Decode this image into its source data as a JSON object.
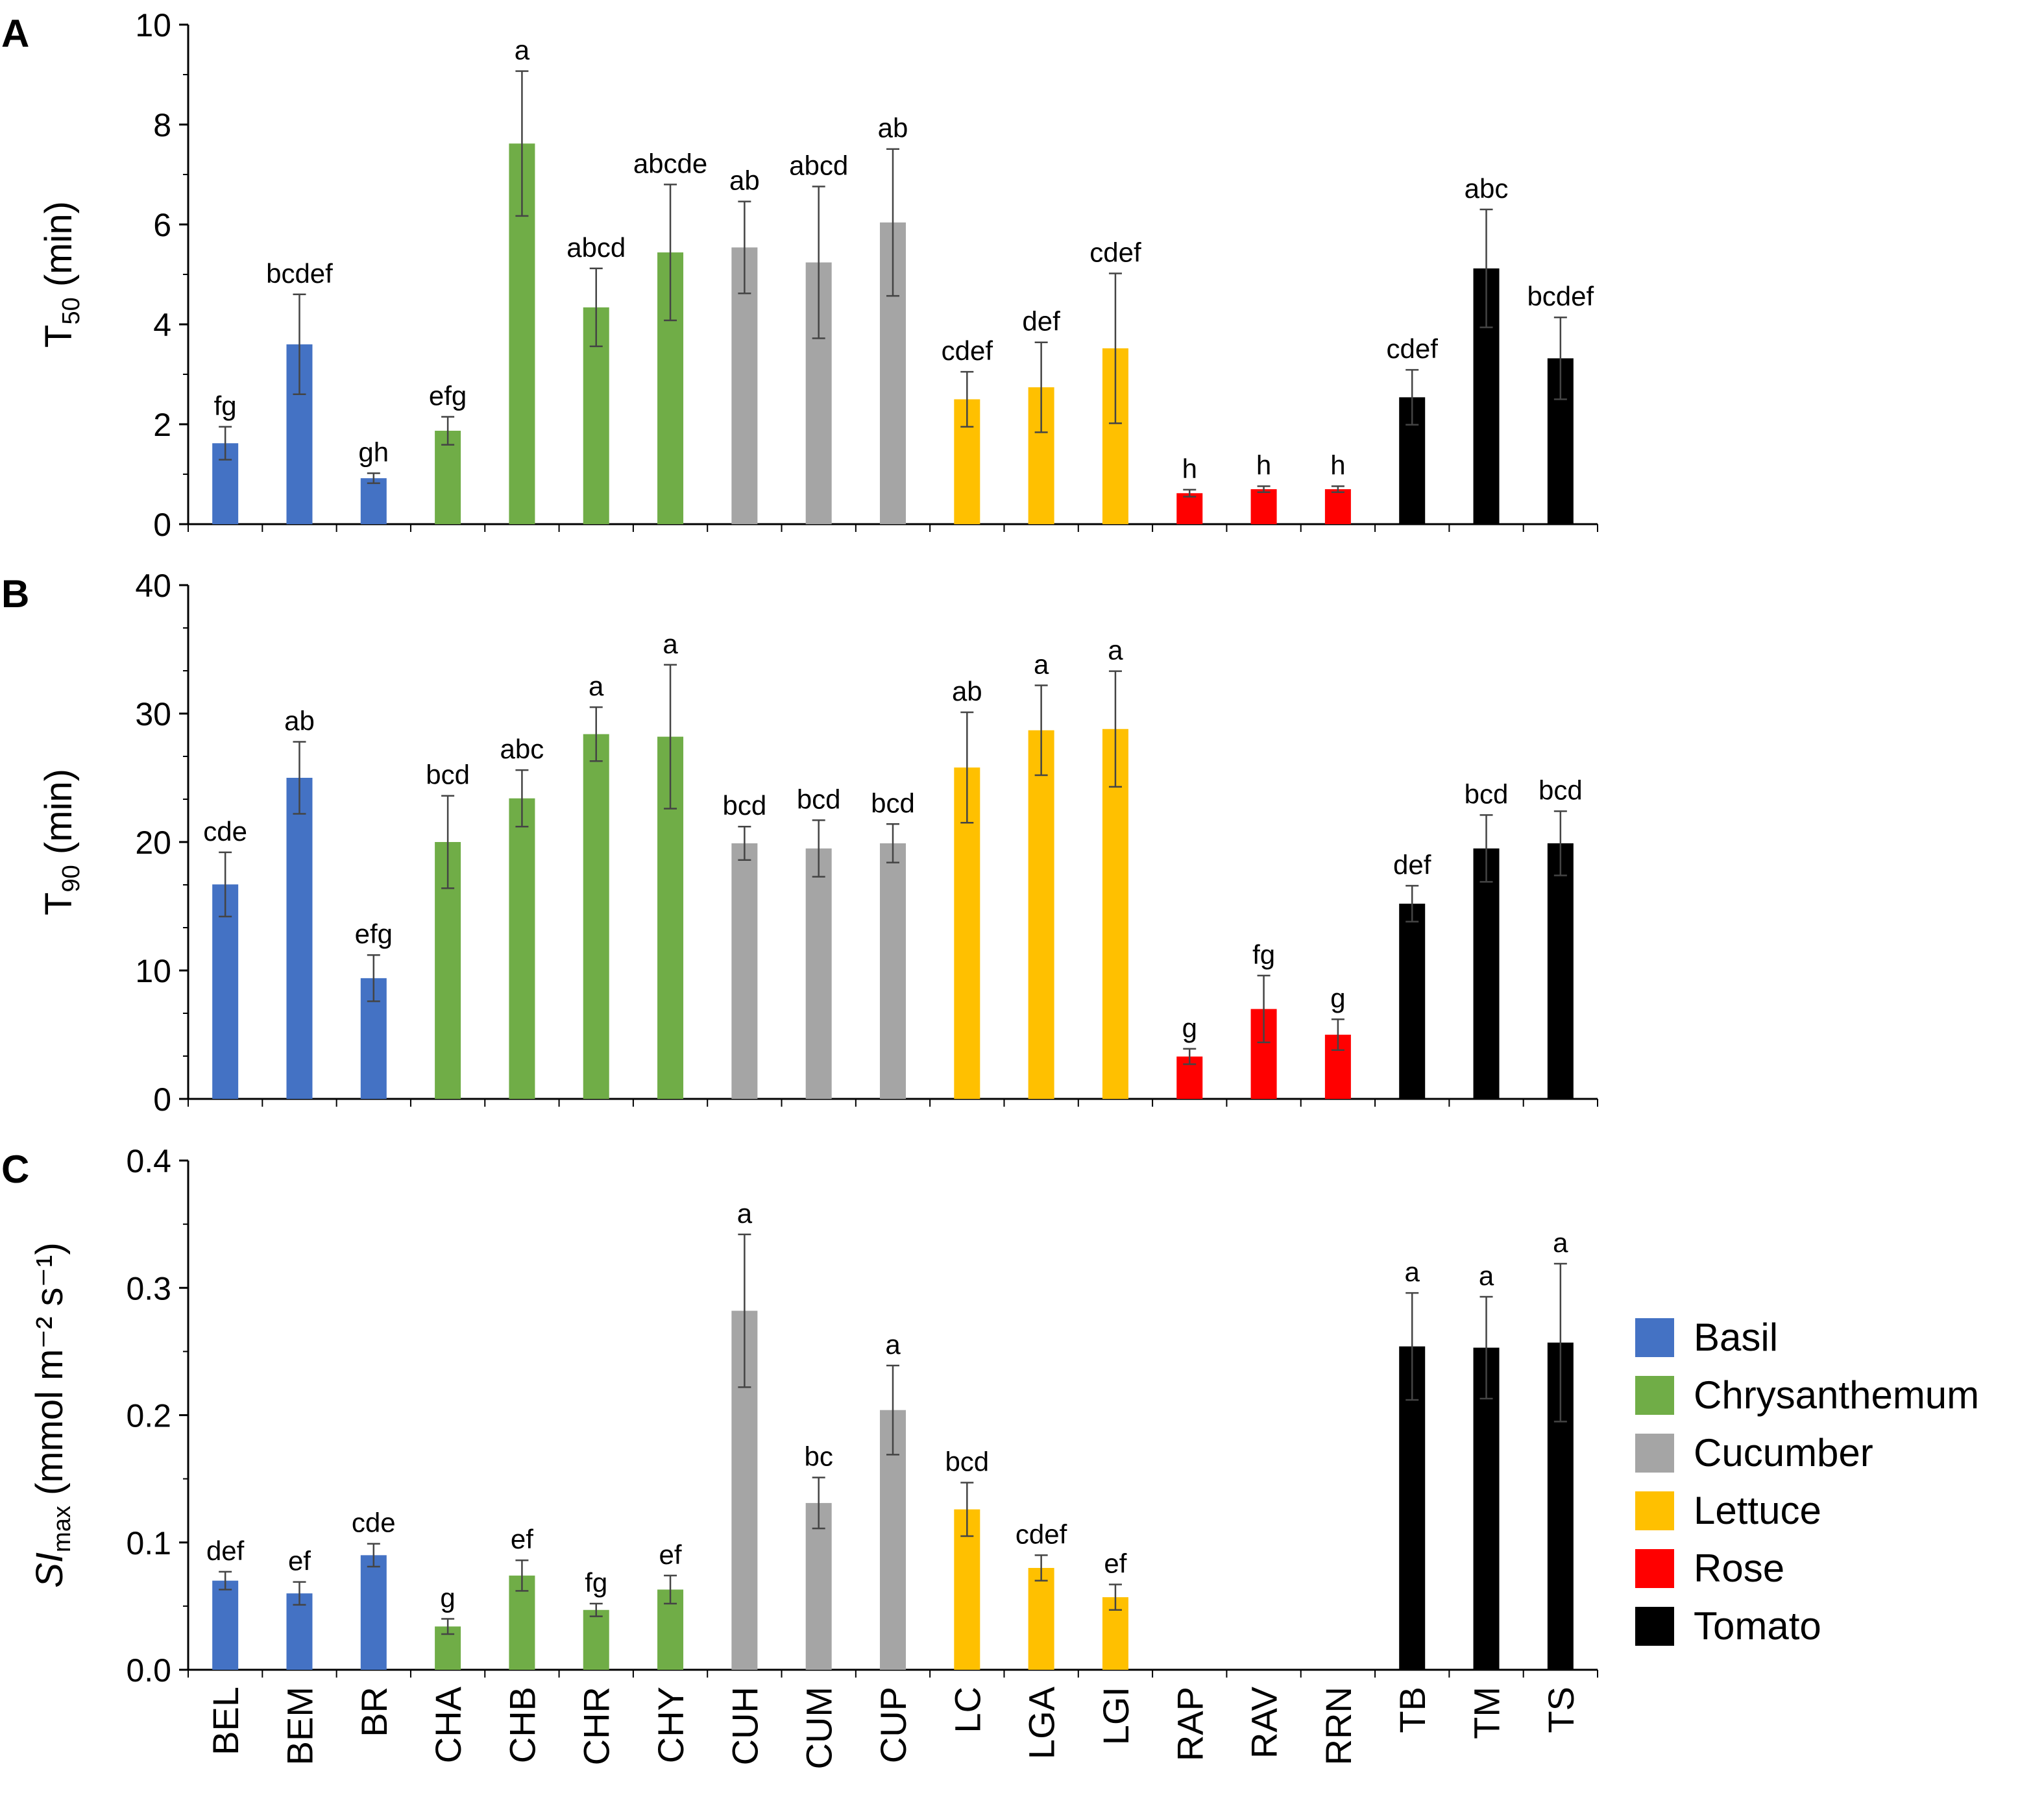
{
  "chart_data": {
    "type": "bar",
    "categories": [
      "BEL",
      "BEM",
      "BR",
      "CHA",
      "CHB",
      "CHR",
      "CHY",
      "CUH",
      "CUM",
      "CUP",
      "LC",
      "LGA",
      "LGI",
      "RAP",
      "RAV",
      "RRN",
      "TB",
      "TM",
      "TS"
    ],
    "groups": [
      {
        "name": "Basil",
        "color": "#4472C4",
        "members": [
          "BEL",
          "BEM",
          "BR"
        ]
      },
      {
        "name": "Chrysanthemum",
        "color": "#70AD47",
        "members": [
          "CHA",
          "CHB",
          "CHR",
          "CHY"
        ]
      },
      {
        "name": "Cucumber",
        "color": "#A5A5A5",
        "members": [
          "CUH",
          "CUM",
          "CUP"
        ]
      },
      {
        "name": "Lettuce",
        "color": "#FFC000",
        "members": [
          "LC",
          "LGA",
          "LGI"
        ]
      },
      {
        "name": "Rose",
        "color": "#FF0000",
        "members": [
          "RAP",
          "RAV",
          "RRN"
        ]
      },
      {
        "name": "Tomato",
        "color": "#000000",
        "members": [
          "TB",
          "TM",
          "TS"
        ]
      }
    ],
    "panels": [
      {
        "letter": "A",
        "ylabel_main": "T",
        "ylabel_sub": "50",
        "ylabel_unit": " (min)",
        "ylim": [
          0,
          10
        ],
        "ticks": [
          "0",
          "2",
          "4",
          "6",
          "8",
          "10"
        ],
        "values": [
          1.62,
          3.6,
          0.92,
          1.87,
          7.62,
          4.34,
          5.44,
          5.54,
          5.24,
          6.04,
          2.5,
          2.74,
          3.52,
          0.62,
          0.7,
          0.7,
          2.54,
          5.12,
          3.32
        ],
        "errors": [
          0.33,
          1.0,
          0.1,
          0.28,
          1.45,
          0.78,
          1.36,
          0.92,
          1.52,
          1.47,
          0.55,
          0.9,
          1.5,
          0.07,
          0.06,
          0.06,
          0.55,
          1.18,
          0.82
        ],
        "letters": [
          "fg",
          "bcdef",
          "gh",
          "efg",
          "a",
          "abcd",
          "abcde",
          "ab",
          "abcd",
          "ab",
          "cdef",
          "def",
          "cdef",
          "h",
          "h",
          "h",
          "cdef",
          "abc",
          "bcdef"
        ]
      },
      {
        "letter": "B",
        "ylabel_main": "T",
        "ylabel_sub": "90",
        "ylabel_unit": " (min)",
        "ylim": [
          0,
          40
        ],
        "ticks": [
          "0",
          "10",
          "20",
          "30",
          "40"
        ],
        "values": [
          16.7,
          25.0,
          9.4,
          20.0,
          23.4,
          28.4,
          28.2,
          19.9,
          19.5,
          19.9,
          25.8,
          28.7,
          28.8,
          3.3,
          7.0,
          5.0,
          15.2,
          19.5,
          19.9
        ],
        "errors": [
          2.5,
          2.8,
          1.8,
          3.6,
          2.2,
          2.1,
          5.6,
          1.3,
          2.2,
          1.5,
          4.3,
          3.5,
          4.5,
          0.6,
          2.6,
          1.2,
          1.4,
          2.6,
          2.5
        ],
        "letters": [
          "cde",
          "ab",
          "efg",
          "bcd",
          "abc",
          "a",
          "a",
          "bcd",
          "bcd",
          "bcd",
          "ab",
          "a",
          "a",
          "g",
          "fg",
          "g",
          "def",
          "bcd",
          "bcd"
        ]
      },
      {
        "letter": "C",
        "ylabel_main": "SI",
        "ylabel_sub": "max",
        "ylabel_unit": " (mmol m⁻² s⁻¹)",
        "ylim": [
          0,
          0.4
        ],
        "ticks": [
          "0.0",
          "0.1",
          "0.2",
          "0.3",
          "0.4"
        ],
        "values": [
          0.07,
          0.06,
          0.09,
          0.034,
          0.074,
          0.047,
          0.063,
          0.282,
          0.131,
          0.204,
          0.126,
          0.08,
          0.057,
          null,
          null,
          null,
          0.254,
          0.253,
          0.257
        ],
        "errors": [
          0.007,
          0.009,
          0.009,
          0.006,
          0.012,
          0.005,
          0.011,
          0.06,
          0.02,
          0.035,
          0.021,
          0.01,
          0.01,
          null,
          null,
          null,
          0.042,
          0.04,
          0.062
        ],
        "letters": [
          "def",
          "ef",
          "cde",
          "g",
          "ef",
          "fg",
          "ef",
          "a",
          "bc",
          "a",
          "bcd",
          "cdef",
          "ef",
          "",
          "",
          "",
          "a",
          "a",
          "a"
        ]
      }
    ]
  }
}
